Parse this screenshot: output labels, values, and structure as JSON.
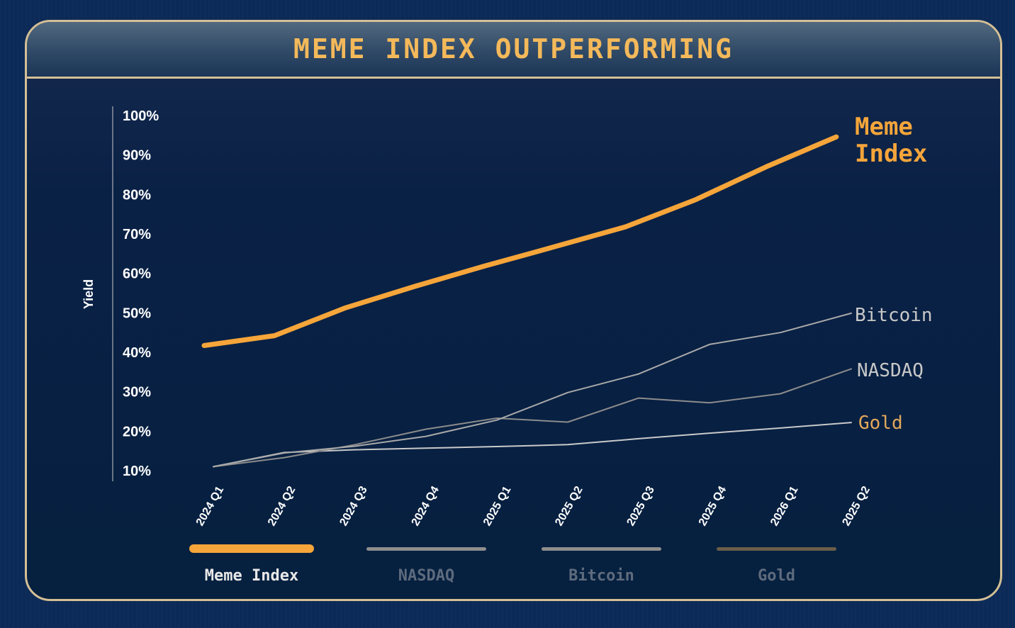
{
  "title": "MEME INDEX OUTPERFORMING",
  "chart_data": {
    "type": "line",
    "title": "MEME INDEX OUTPERFORMING",
    "ylabel": "Yield",
    "xlabel": "",
    "ylim": [
      10,
      100
    ],
    "y_ticks": [
      "100%",
      "90%",
      "80%",
      "70%",
      "60%",
      "50%",
      "40%",
      "30%",
      "20%",
      "10%"
    ],
    "categories": [
      "2024 Q1",
      "2024 Q2",
      "2024 Q3",
      "2024 Q4",
      "2025 Q1",
      "2025 Q2",
      "2025 Q3",
      "2025 Q4",
      "2026 Q1",
      "2025 Q2"
    ],
    "series": [
      {
        "name": "Meme Index",
        "end_label": [
          "Meme",
          "Index"
        ],
        "color": "#f5a53a",
        "values": [
          41.7,
          44.2,
          51.2,
          56.7,
          61.9,
          66.8,
          71.8,
          78.7,
          87.0,
          94.6
        ]
      },
      {
        "name": "Bitcoin",
        "end_label": [
          "Bitcoin"
        ],
        "color": "#a9a9a9",
        "values": [
          11.0,
          14.5,
          16.2,
          18.7,
          22.8,
          29.8,
          34.5,
          42.0,
          45.0,
          49.9
        ]
      },
      {
        "name": "NASDAQ",
        "end_label": [
          "NASDAQ"
        ],
        "color": "#8c8c8c",
        "values": [
          11.0,
          13.3,
          16.6,
          20.5,
          23.3,
          22.3,
          28.4,
          27.2,
          29.5,
          35.8
        ]
      },
      {
        "name": "Gold",
        "end_label": [
          "Gold"
        ],
        "color": "#c9c9c9",
        "values": [
          11.0,
          14.6,
          15.3,
          15.7,
          16.1,
          16.6,
          18.1,
          19.5,
          20.8,
          22.2
        ]
      }
    ]
  },
  "legend": [
    {
      "label": "Meme Index",
      "swatch_color": "#f5a53a",
      "text_color": "#e8e8e8"
    },
    {
      "label": "NASDAQ",
      "swatch_color": "#8e8e8e",
      "text_color": "#5e6b7d"
    },
    {
      "label": "Bitcoin",
      "swatch_color": "#8e8e8e",
      "text_color": "#5e6b7d"
    },
    {
      "label": "Gold",
      "swatch_color": "#6a5d48",
      "text_color": "#5e6b7d"
    }
  ],
  "colors": {
    "accent": "#f5a53a",
    "border": "#d4bf95",
    "end_label_gold": "#e3a85a",
    "end_label_gray": "#c8c8c8"
  }
}
